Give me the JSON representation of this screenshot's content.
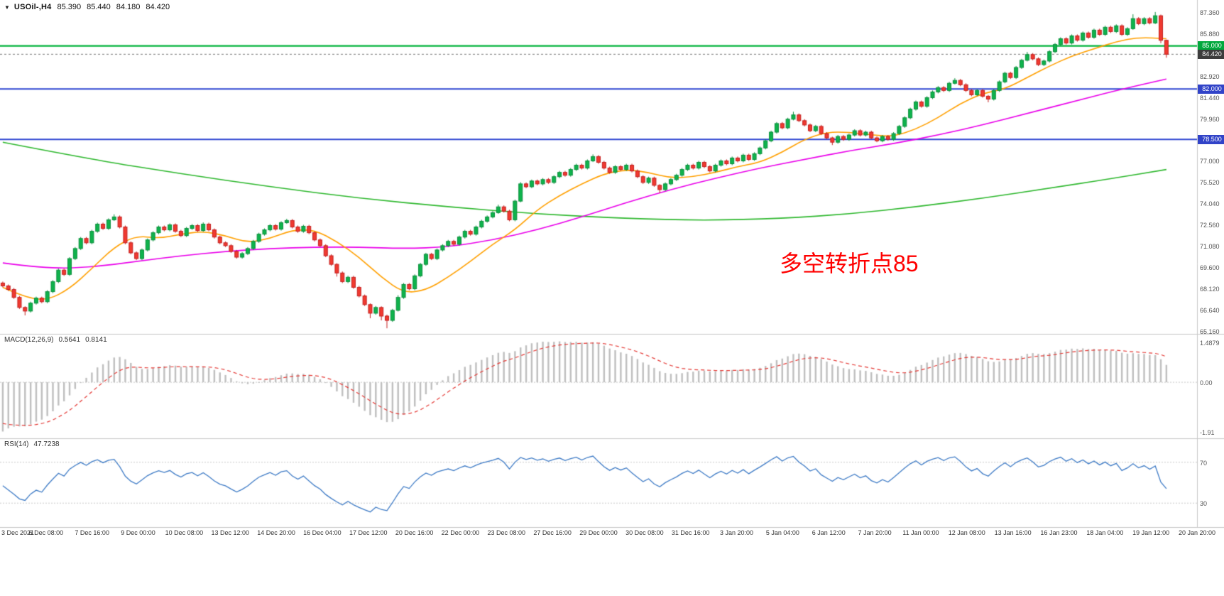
{
  "icons": {
    "dropdown": "▼"
  },
  "main_chart": {
    "header": {
      "symbol": "USOil-,H4",
      "open": "85.390",
      "high": "85.440",
      "low": "84.180",
      "close": "84.420"
    },
    "annotation": {
      "text": "多空转折点85",
      "color": "#ff0000"
    },
    "hlines": [
      {
        "price": 85.0,
        "color": "#00b43c",
        "width": 2.4
      },
      {
        "price": 82.0,
        "color": "#2e46d2",
        "width": 2
      },
      {
        "price": 78.5,
        "color": "#2e46d2",
        "width": 2
      }
    ],
    "current_price_line": {
      "price": 84.42,
      "color": "#777777"
    },
    "tags": [
      {
        "name": "resistance-85-tag",
        "label": "85.000",
        "price": 85.0,
        "bg": "#00a83c"
      },
      {
        "name": "current-price-tag",
        "label": "84.420",
        "price": 84.42,
        "bg": "#3c3c3c"
      },
      {
        "name": "support-82-tag",
        "label": "82.000",
        "price": 82.0,
        "bg": "#3143c8"
      },
      {
        "name": "support-785-tag",
        "label": "78.500",
        "price": 78.5,
        "bg": "#3143c8"
      }
    ]
  },
  "chart_data": {
    "type": "candlestick",
    "symbol": "USOil",
    "timeframe": "H4",
    "title": "USOil-,H4 85.390 85.440 84.180 84.420",
    "ohlc_current": {
      "open": 85.39,
      "high": 85.44,
      "low": 84.18,
      "close": 84.42
    },
    "y_axis": {
      "min": 65.16,
      "max": 87.8,
      "ticks": [
        87.36,
        85.88,
        84.4,
        82.92,
        81.44,
        79.96,
        78.48,
        77.0,
        75.52,
        74.04,
        72.56,
        71.08,
        69.6,
        68.12,
        66.64,
        65.16
      ]
    },
    "x_labels": [
      "3 Dec 2021",
      "6 Dec 08:00",
      "7 Dec 16:00",
      "9 Dec 00:00",
      "10 Dec 08:00",
      "13 Dec 12:00",
      "14 Dec 20:00",
      "16 Dec 04:00",
      "17 Dec 12:00",
      "20 Dec 16:00",
      "22 Dec 00:00",
      "23 Dec 08:00",
      "27 Dec 16:00",
      "29 Dec 00:00",
      "30 Dec 08:00",
      "31 Dec 16:00",
      "3 Jan 20:00",
      "5 Jan 04:00",
      "6 Jan 12:00",
      "7 Jan 20:00",
      "11 Jan 00:00",
      "12 Jan 08:00",
      "13 Jan 16:00",
      "16 Jan 23:00",
      "18 Jan 04:00",
      "19 Jan 12:00",
      "20 Jan 20:00"
    ],
    "first_open": 68.5,
    "default_wick": 0.1,
    "closes": [
      68.3,
      68.05,
      67.5,
      66.8,
      66.55,
      67.1,
      67.45,
      67.2,
      67.9,
      68.6,
      69.4,
      69.1,
      70.2,
      70.9,
      71.6,
      71.3,
      72.1,
      72.6,
      72.3,
      72.9,
      73.1,
      72.4,
      71.3,
      70.6,
      70.2,
      70.8,
      71.5,
      72.0,
      72.4,
      72.2,
      72.55,
      72.1,
      71.8,
      72.3,
      72.5,
      72.15,
      72.6,
      72.2,
      71.7,
      71.3,
      71.1,
      70.7,
      70.3,
      70.55,
      70.9,
      71.4,
      71.9,
      72.2,
      72.5,
      72.25,
      72.7,
      72.85,
      72.4,
      72.1,
      72.45,
      72.0,
      71.5,
      71.1,
      70.4,
      69.8,
      69.2,
      68.6,
      68.9,
      68.2,
      67.6,
      67.0,
      66.4,
      66.8,
      66.2,
      65.9,
      66.6,
      67.5,
      68.4,
      68.1,
      69.0,
      69.8,
      70.5,
      70.2,
      70.8,
      71.1,
      71.4,
      71.2,
      71.7,
      72.1,
      71.9,
      72.4,
      72.8,
      73.1,
      73.4,
      73.8,
      73.5,
      72.9,
      74.2,
      75.4,
      75.2,
      75.6,
      75.4,
      75.7,
      75.5,
      75.9,
      76.2,
      76.0,
      76.4,
      76.7,
      76.5,
      77.0,
      77.3,
      76.9,
      76.5,
      76.2,
      76.6,
      76.4,
      76.7,
      76.3,
      75.9,
      75.5,
      75.8,
      75.3,
      75.0,
      75.4,
      75.7,
      76.0,
      76.4,
      76.7,
      76.5,
      76.9,
      76.6,
      76.3,
      76.7,
      77.0,
      76.8,
      77.2,
      77.0,
      77.4,
      77.1,
      77.5,
      77.9,
      78.4,
      79.0,
      79.6,
      79.3,
      79.9,
      80.2,
      79.8,
      79.5,
      79.1,
      79.4,
      78.9,
      78.6,
      78.3,
      78.7,
      78.5,
      78.8,
      79.1,
      78.8,
      79.0,
      78.6,
      78.4,
      78.7,
      78.5,
      78.9,
      79.4,
      80.0,
      80.6,
      81.1,
      80.8,
      81.4,
      81.8,
      82.1,
      81.9,
      82.4,
      82.6,
      82.3,
      81.9,
      81.6,
      81.9,
      81.5,
      81.3,
      81.9,
      82.5,
      83.1,
      82.8,
      83.5,
      84.0,
      84.4,
      84.1,
      83.7,
      83.95,
      84.6,
      85.1,
      85.5,
      85.2,
      85.7,
      85.4,
      85.9,
      85.6,
      86.1,
      85.8,
      86.3,
      86.0,
      86.4,
      85.8,
      86.2,
      86.9,
      86.55,
      86.9,
      86.6,
      87.1,
      85.39,
      84.42
    ],
    "wick_overrides": {
      "4": [
        0.08,
        0.3
      ],
      "20": [
        0.18,
        0.08
      ],
      "36": [
        0.12,
        0.08
      ],
      "51": [
        0.12,
        0.08
      ],
      "60": [
        0.08,
        0.25
      ],
      "66": [
        0.08,
        0.35
      ],
      "68": [
        0.08,
        0.3
      ],
      "69": [
        0.1,
        0.55
      ],
      "71": [
        0.15,
        0.08
      ],
      "89": [
        0.15,
        0.08
      ],
      "93": [
        0.12,
        0.08
      ],
      "106": [
        0.15,
        0.08
      ],
      "118": [
        0.08,
        0.25
      ],
      "142": [
        0.22,
        0.08
      ],
      "149": [
        0.08,
        0.2
      ],
      "171": [
        0.15,
        0.08
      ],
      "177": [
        0.08,
        0.22
      ],
      "184": [
        0.18,
        0.08
      ],
      "203": [
        0.3,
        0.08
      ],
      "207": [
        0.26,
        0.08
      ],
      "208": [
        0.08,
        0.2
      ],
      "209": [
        0.05,
        0.24
      ]
    },
    "ma_fast_orange": [
      [
        0,
        68.2
      ],
      [
        4,
        67.5
      ],
      [
        8,
        67.3
      ],
      [
        12,
        68.1
      ],
      [
        16,
        69.5
      ],
      [
        20,
        71.0
      ],
      [
        24,
        71.8
      ],
      [
        28,
        71.6
      ],
      [
        32,
        71.9
      ],
      [
        36,
        72.1
      ],
      [
        40,
        71.8
      ],
      [
        44,
        71.3
      ],
      [
        48,
        71.6
      ],
      [
        52,
        72.2
      ],
      [
        56,
        72.2
      ],
      [
        60,
        71.4
      ],
      [
        64,
        70.3
      ],
      [
        68,
        68.9
      ],
      [
        72,
        67.8
      ],
      [
        76,
        68.0
      ],
      [
        80,
        68.9
      ],
      [
        84,
        70.0
      ],
      [
        88,
        71.2
      ],
      [
        92,
        72.2
      ],
      [
        96,
        73.6
      ],
      [
        100,
        74.6
      ],
      [
        104,
        75.4
      ],
      [
        108,
        76.1
      ],
      [
        112,
        76.4
      ],
      [
        116,
        76.2
      ],
      [
        120,
        75.8
      ],
      [
        124,
        75.9
      ],
      [
        128,
        76.2
      ],
      [
        132,
        76.6
      ],
      [
        136,
        76.9
      ],
      [
        140,
        77.6
      ],
      [
        144,
        78.5
      ],
      [
        148,
        79.0
      ],
      [
        152,
        79.0
      ],
      [
        156,
        78.8
      ],
      [
        160,
        78.7
      ],
      [
        164,
        79.2
      ],
      [
        168,
        80.0
      ],
      [
        172,
        81.0
      ],
      [
        176,
        81.7
      ],
      [
        180,
        82.0
      ],
      [
        184,
        82.8
      ],
      [
        188,
        83.6
      ],
      [
        192,
        84.3
      ],
      [
        196,
        84.8
      ],
      [
        200,
        85.3
      ],
      [
        204,
        85.6
      ],
      [
        209,
        85.5
      ]
    ],
    "ma_mid_magenta": [
      [
        0,
        69.9
      ],
      [
        8,
        69.5
      ],
      [
        16,
        69.6
      ],
      [
        24,
        70.0
      ],
      [
        32,
        70.4
      ],
      [
        40,
        70.7
      ],
      [
        48,
        70.9
      ],
      [
        56,
        71.0
      ],
      [
        64,
        71.0
      ],
      [
        72,
        70.9
      ],
      [
        80,
        71.0
      ],
      [
        88,
        71.5
      ],
      [
        96,
        72.2
      ],
      [
        104,
        73.1
      ],
      [
        112,
        74.1
      ],
      [
        120,
        75.0
      ],
      [
        128,
        75.8
      ],
      [
        136,
        76.5
      ],
      [
        144,
        77.1
      ],
      [
        152,
        77.7
      ],
      [
        160,
        78.2
      ],
      [
        168,
        78.8
      ],
      [
        176,
        79.5
      ],
      [
        184,
        80.3
      ],
      [
        192,
        81.1
      ],
      [
        200,
        81.9
      ],
      [
        209,
        82.7
      ]
    ],
    "ma_slow_green": [
      [
        0,
        78.3
      ],
      [
        16,
        77.1
      ],
      [
        32,
        76.1
      ],
      [
        48,
        75.2
      ],
      [
        64,
        74.4
      ],
      [
        80,
        73.8
      ],
      [
        96,
        73.3
      ],
      [
        112,
        73.0
      ],
      [
        126,
        72.85
      ],
      [
        140,
        73.0
      ],
      [
        152,
        73.3
      ],
      [
        164,
        73.8
      ],
      [
        176,
        74.4
      ],
      [
        188,
        75.1
      ],
      [
        198,
        75.7
      ],
      [
        209,
        76.4
      ]
    ],
    "macd": {
      "label": "MACD(12,26,9)",
      "fast": 12,
      "slow": 26,
      "signal": 9,
      "value": "0.5641",
      "signal_value": "0.8141",
      "axis_top": "1.4879",
      "axis_zero": "0.00",
      "axis_bottom": "-1.91",
      "seed_slow_offset": 1.9,
      "seed_signal": -1.4
    },
    "rsi": {
      "label": "RSI(14)",
      "period": 14,
      "value": "47.7238",
      "level_high": "70",
      "level_low": "30"
    }
  },
  "colors": {
    "bull_fill": "#0fb34c",
    "bull_edge": "#0a8f3c",
    "bear_fill": "#f03a30",
    "bear_edge": "#c41f1f",
    "ma_fast": "#ffa000",
    "ma_mid": "#ea00ea",
    "ma_slow": "#2eb82e",
    "macd_hist": "#bfbfbf",
    "macd_signal": "#e53935",
    "rsi_line": "#3e7bc6",
    "separator": "#c8c8c8",
    "level_dotted": "#c9c9c9"
  }
}
